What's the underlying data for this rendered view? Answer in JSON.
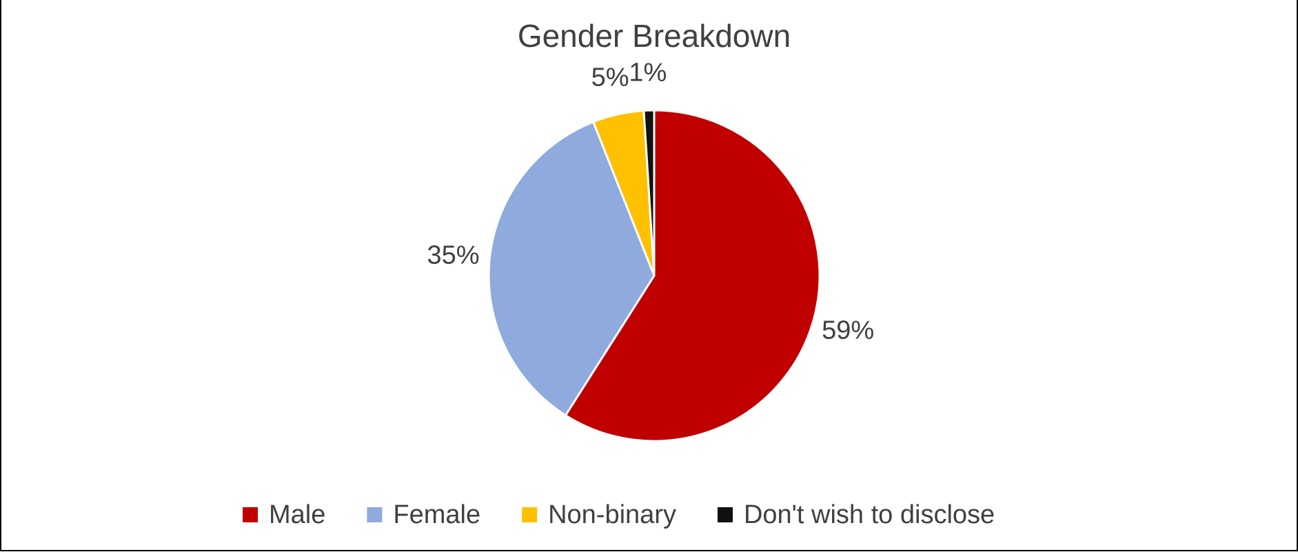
{
  "chart_data": {
    "type": "pie",
    "title": "Gender Breakdown",
    "categories": [
      "Male",
      "Female",
      "Non-binary",
      "Don't wish to disclose"
    ],
    "values": [
      59,
      35,
      5,
      1
    ],
    "value_labels": [
      "59%",
      "35%",
      "5%",
      "1%"
    ],
    "colors": [
      "#c00000",
      "#8faadc",
      "#ffc000",
      "#111111"
    ],
    "legend": "bottom"
  }
}
